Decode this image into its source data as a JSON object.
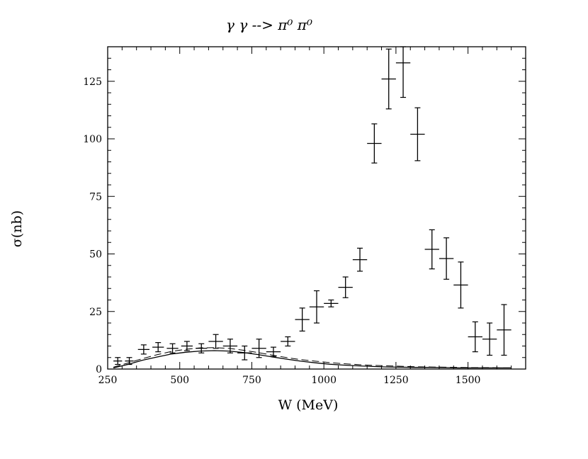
{
  "chart_data": {
    "type": "scatter",
    "title": "γ γ   --> π⁰ π⁰",
    "xlabel": "W (MeV)",
    "ylabel": "σ(nb)",
    "xlim": [
      250,
      1700
    ],
    "ylim": [
      0,
      140
    ],
    "xticks": [
      250,
      500,
      750,
      1000,
      1250,
      1500
    ],
    "yticks": [
      0,
      25,
      50,
      75,
      100,
      125
    ],
    "grid": false,
    "legend": "none",
    "series": [
      {
        "kind": "points-with-errorbars",
        "points": [
          {
            "x": 285,
            "y": 3.5,
            "xerr": 15,
            "yerr": 1.5
          },
          {
            "x": 325,
            "y": 3.5,
            "xerr": 15,
            "yerr": 1.5
          },
          {
            "x": 375,
            "y": 8.5,
            "xerr": 20,
            "yerr": 2
          },
          {
            "x": 425,
            "y": 9.5,
            "xerr": 20,
            "yerr": 2
          },
          {
            "x": 475,
            "y": 9.0,
            "xerr": 20,
            "yerr": 2
          },
          {
            "x": 525,
            "y": 10.0,
            "xerr": 20,
            "yerr": 2
          },
          {
            "x": 575,
            "y": 9.0,
            "xerr": 20,
            "yerr": 2
          },
          {
            "x": 625,
            "y": 12.0,
            "xerr": 25,
            "yerr": 3
          },
          {
            "x": 675,
            "y": 10.0,
            "xerr": 25,
            "yerr": 3
          },
          {
            "x": 725,
            "y": 7.0,
            "xerr": 25,
            "yerr": 3
          },
          {
            "x": 775,
            "y": 9.0,
            "xerr": 25,
            "yerr": 4
          },
          {
            "x": 825,
            "y": 7.5,
            "xerr": 25,
            "yerr": 2
          },
          {
            "x": 875,
            "y": 12.0,
            "xerr": 25,
            "yerr": 2
          },
          {
            "x": 925,
            "y": 21.5,
            "xerr": 25,
            "yerr": 5
          },
          {
            "x": 975,
            "y": 27.0,
            "xerr": 25,
            "yerr": 7
          },
          {
            "x": 1025,
            "y": 28.5,
            "xerr": 25,
            "yerr": 1.5
          },
          {
            "x": 1075,
            "y": 35.5,
            "xerr": 25,
            "yerr": 4.5
          },
          {
            "x": 1125,
            "y": 47.5,
            "xerr": 25,
            "yerr": 5
          },
          {
            "x": 1175,
            "y": 98.0,
            "xerr": 25,
            "yerr": 8.5
          },
          {
            "x": 1225,
            "y": 126.0,
            "xerr": 25,
            "yerr": 13
          },
          {
            "x": 1275,
            "y": 133.0,
            "xerr": 25,
            "yerr": 15
          },
          {
            "x": 1325,
            "y": 102.0,
            "xerr": 25,
            "yerr": 11.5
          },
          {
            "x": 1375,
            "y": 52.0,
            "xerr": 25,
            "yerr": 8.5
          },
          {
            "x": 1425,
            "y": 48.0,
            "xerr": 25,
            "yerr": 9
          },
          {
            "x": 1475,
            "y": 36.5,
            "xerr": 25,
            "yerr": 10
          },
          {
            "x": 1525,
            "y": 14.0,
            "xerr": 25,
            "yerr": 6.5
          },
          {
            "x": 1575,
            "y": 13.0,
            "xerr": 25,
            "yerr": 7
          },
          {
            "x": 1625,
            "y": 17.0,
            "xerr": 25,
            "yerr": 11
          }
        ]
      },
      {
        "kind": "solid-curve",
        "x": [
          270,
          320,
          370,
          420,
          470,
          520,
          570,
          620,
          670,
          720,
          770,
          820,
          870,
          920,
          970,
          1020,
          1070,
          1120,
          1170,
          1220,
          1270,
          1320,
          1370,
          1420,
          1470,
          1520,
          1570,
          1620,
          1650
        ],
        "y": [
          0.5,
          2.0,
          3.8,
          5.2,
          6.5,
          7.3,
          7.8,
          8.0,
          7.8,
          7.2,
          6.3,
          5.3,
          4.3,
          3.4,
          2.7,
          2.1,
          1.7,
          1.4,
          1.1,
          0.9,
          0.8,
          0.7,
          0.7,
          0.6,
          0.5,
          0.5,
          0.5,
          0.5,
          0.5
        ]
      },
      {
        "kind": "dashed-curve",
        "x": [
          270,
          320,
          370,
          420,
          470,
          520,
          570,
          620,
          670,
          720,
          770,
          820,
          870,
          920,
          970,
          1020,
          1070,
          1120,
          1170,
          1220,
          1270,
          1320,
          1370,
          1420,
          1470,
          1520,
          1570,
          1620,
          1650
        ],
        "y": [
          0.8,
          2.6,
          4.5,
          6.2,
          7.6,
          8.6,
          9.2,
          9.3,
          9.0,
          8.2,
          7.2,
          6.1,
          5.0,
          4.1,
          3.4,
          2.8,
          2.3,
          1.9,
          1.6,
          1.4,
          1.2,
          1.0,
          0.9,
          0.8,
          0.7,
          0.6,
          0.6,
          0.5,
          0.5
        ]
      }
    ]
  }
}
